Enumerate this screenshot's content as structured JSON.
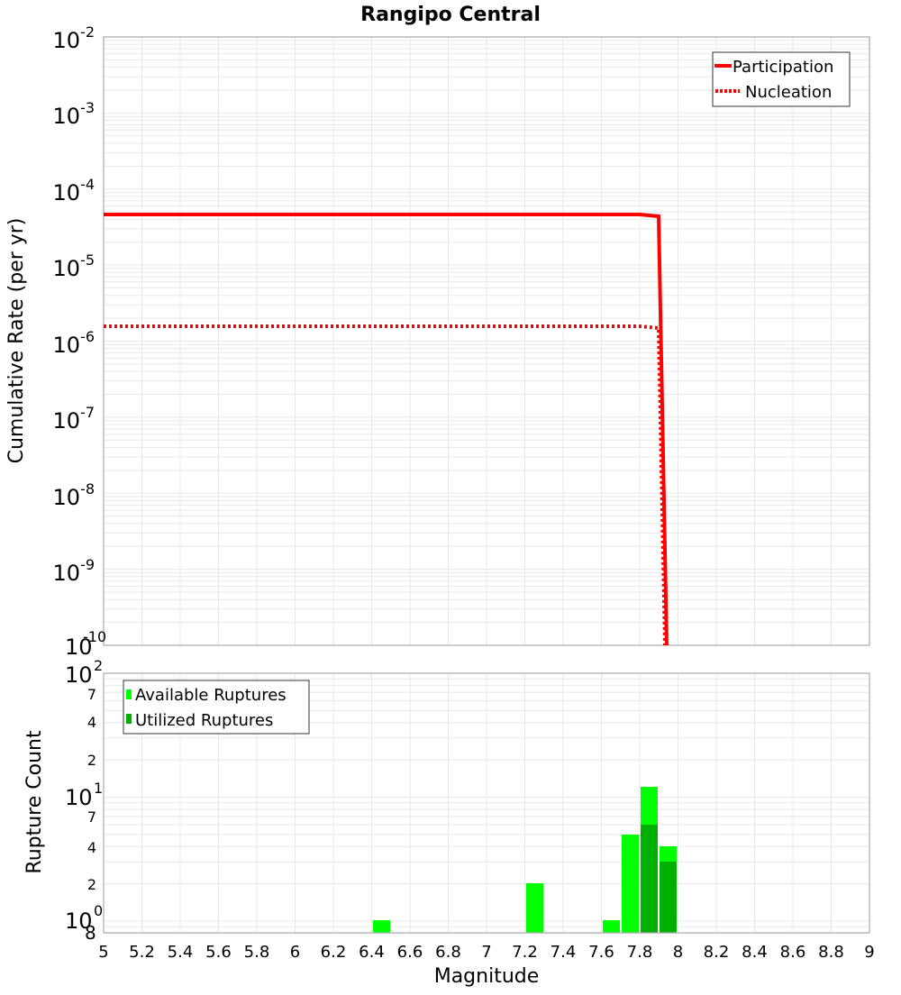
{
  "chart_data": [
    {
      "type": "line",
      "title": "Rangipo Central",
      "xlabel": "Magnitude",
      "ylabel": "Cumulative Rate (per yr)",
      "yscale": "log",
      "xlim": [
        5,
        9
      ],
      "ylim": [
        1e-10,
        0.01
      ],
      "grid": true,
      "legend_position": "upper right",
      "y_ticks": [
        "10^-2",
        "10^-3",
        "10^-4",
        "10^-5",
        "10^-6",
        "10^-7",
        "10^-8",
        "10^-9",
        "10^-10"
      ],
      "series": [
        {
          "name": "Participation",
          "style": "solid",
          "color": "#ff0000",
          "x": [
            5.0,
            7.8,
            7.9,
            7.95
          ],
          "y": [
            4.6e-05,
            4.6e-05,
            4.4e-05,
            1e-10
          ]
        },
        {
          "name": "Nucleation",
          "style": "dotted",
          "color": "#ff0000",
          "x": [
            5.0,
            7.8,
            7.9,
            7.95
          ],
          "y": [
            1.55e-06,
            1.55e-06,
            1.45e-06,
            1e-10
          ]
        }
      ]
    },
    {
      "type": "bar",
      "xlabel": "Magnitude",
      "ylabel": "Rupture Count",
      "yscale": "log",
      "xlim": [
        5,
        9
      ],
      "ylim": [
        0.8,
        100
      ],
      "grid": true,
      "legend_position": "upper left",
      "x_ticks": [
        "5",
        "5.2",
        "5.4",
        "5.6",
        "5.8",
        "6",
        "6.2",
        "6.4",
        "6.6",
        "6.8",
        "7",
        "7.2",
        "7.4",
        "7.6",
        "7.8",
        "8",
        "8.2",
        "8.4",
        "8.6",
        "8.8",
        "9"
      ],
      "y_ticks": [
        "10^0",
        "2",
        "4",
        "7",
        "10^1",
        "2",
        "4",
        "7",
        "10^2"
      ],
      "bin_width": 0.1,
      "categories": [
        6.45,
        7.25,
        7.65,
        7.75,
        7.85,
        7.95
      ],
      "series": [
        {
          "name": "Available Ruptures",
          "color": "#00ff00",
          "values": [
            1,
            2,
            1,
            5,
            12,
            4
          ]
        },
        {
          "name": "Utilized Ruptures",
          "color": "#00b000",
          "values": [
            0,
            0,
            0,
            0,
            6,
            3
          ]
        }
      ]
    }
  ],
  "title": "Rangipo Central",
  "top": {
    "ylabel": "Cumulative Rate (per yr)",
    "legend": {
      "participation": "Participation",
      "nucleation": "Nucleation"
    },
    "yticks": [
      {
        "base": "10",
        "exp": "-2"
      },
      {
        "base": "10",
        "exp": "-3"
      },
      {
        "base": "10",
        "exp": "-4"
      },
      {
        "base": "10",
        "exp": "-5"
      },
      {
        "base": "10",
        "exp": "-6"
      },
      {
        "base": "10",
        "exp": "-7"
      },
      {
        "base": "10",
        "exp": "-8"
      },
      {
        "base": "10",
        "exp": "-9"
      },
      {
        "base": "10",
        "exp": "-10"
      }
    ]
  },
  "bottom": {
    "ylabel": "Rupture Count",
    "xlabel": "Magnitude",
    "legend": {
      "available": "Available Ruptures",
      "utilized": "Utilized Ruptures"
    },
    "major_ticks": [
      {
        "base": "10",
        "exp": "2"
      },
      {
        "base": "10",
        "exp": "1"
      },
      {
        "base": "10",
        "exp": "0"
      }
    ],
    "minor_ticks": [
      "7",
      "4",
      "2",
      "7",
      "4",
      "2",
      "8"
    ],
    "xticks": [
      "5",
      "5.2",
      "5.4",
      "5.6",
      "5.8",
      "6",
      "6.2",
      "6.4",
      "6.6",
      "6.8",
      "7",
      "7.2",
      "7.4",
      "7.6",
      "7.8",
      "8",
      "8.2",
      "8.4",
      "8.6",
      "8.8",
      "9"
    ]
  }
}
